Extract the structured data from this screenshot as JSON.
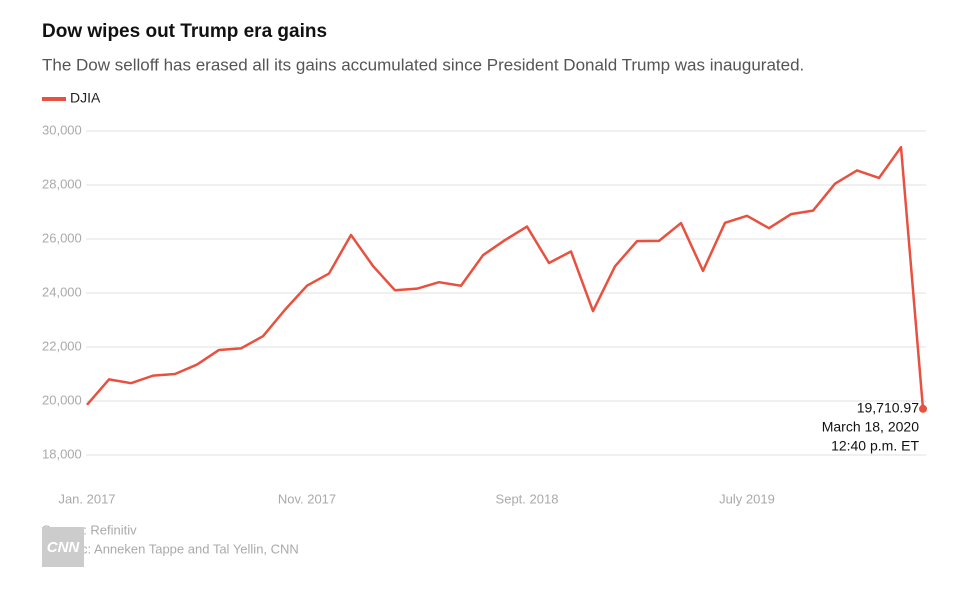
{
  "chart_data": {
    "type": "line",
    "title": "Dow wipes out Trump era gains",
    "subtitle": "The Dow selloff has erased all its gains accumulated since President Donald Trump was inaugurated.",
    "x": [
      "2017-01",
      "2017-02",
      "2017-03",
      "2017-04",
      "2017-05",
      "2017-06",
      "2017-07",
      "2017-08",
      "2017-09",
      "2017-10",
      "2017-11",
      "2017-12",
      "2018-01",
      "2018-02",
      "2018-03",
      "2018-04",
      "2018-05",
      "2018-06",
      "2018-07",
      "2018-08",
      "2018-09",
      "2018-10",
      "2018-11",
      "2018-12",
      "2019-01",
      "2019-02",
      "2019-03",
      "2019-04",
      "2019-05",
      "2019-06",
      "2019-07",
      "2019-08",
      "2019-09",
      "2019-10",
      "2019-11",
      "2019-12",
      "2020-01",
      "2020-02",
      "2020-03"
    ],
    "series": [
      {
        "name": "DJIA",
        "color": "#e8513f",
        "values": [
          19860,
          20800,
          20660,
          20940,
          21000,
          21350,
          21890,
          21950,
          22400,
          23380,
          24270,
          24720,
          26150,
          25000,
          24100,
          24160,
          24400,
          24270,
          25400,
          25960,
          26460,
          25110,
          25540,
          23330,
          24990,
          25920,
          25930,
          26590,
          24820,
          26600,
          26860,
          26400,
          26920,
          27050,
          28050,
          28540,
          28260,
          29400,
          19710.97
        ],
        "value_labels": [
          null,
          null,
          null,
          null,
          null,
          null,
          null,
          null,
          null,
          null,
          null,
          null,
          null,
          null,
          null,
          null,
          null,
          null,
          null,
          null,
          null,
          null,
          null,
          null,
          null,
          null,
          null,
          null,
          null,
          null,
          null,
          null,
          null,
          null,
          null,
          null,
          null,
          null,
          "19,710.97"
        ]
      }
    ],
    "annotation": [
      "March 18, 2020",
      "12:40 p.m. ET"
    ],
    "xlim": [
      "2017-01",
      "2020-03"
    ],
    "xticks": [
      {
        "value": "2017-01",
        "label": "Jan. 2017"
      },
      {
        "value": "2017-11",
        "label": "Nov. 2017"
      },
      {
        "value": "2018-09",
        "label": "Sept. 2018"
      },
      {
        "value": "2019-07",
        "label": "July 2019"
      }
    ],
    "ylim": [
      18000,
      30000
    ],
    "yticks": [
      {
        "value": 18000,
        "label": "18,000"
      },
      {
        "value": 20000,
        "label": "20,000"
      },
      {
        "value": 22000,
        "label": "22,000"
      },
      {
        "value": 24000,
        "label": "24,000"
      },
      {
        "value": 26000,
        "label": "26,000"
      },
      {
        "value": 28000,
        "label": "28,000"
      },
      {
        "value": 30000,
        "label": "30,000"
      }
    ],
    "grid": true,
    "source": "Source: Refinitiv",
    "credit": "Graphic: Anneken Tappe and Tal Yellin, CNN",
    "logo": "CNN"
  }
}
